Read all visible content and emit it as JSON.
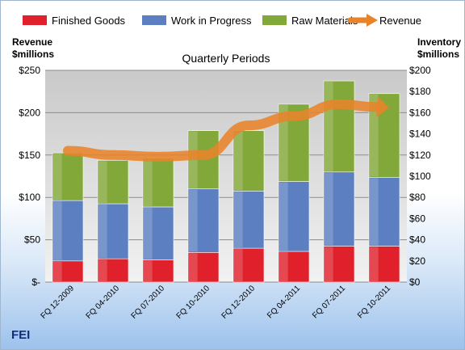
{
  "brand": "FEI",
  "chart_data": {
    "type": "bar",
    "stacked": true,
    "title": "Quarterly Periods",
    "ylabel_left": [
      "Revenue",
      "$millions"
    ],
    "ylabel_right": [
      "Inventory",
      "$millions"
    ],
    "categories": [
      "FQ 12-2009",
      "FQ 04-2010",
      "FQ 07-2010",
      "FQ 10-2010",
      "FQ 12-2010",
      "FQ 04-2011",
      "FQ 07-2011",
      "FQ 10-2011"
    ],
    "left_axis": {
      "ylim": [
        0,
        250
      ],
      "ticks": [
        0,
        50,
        100,
        150,
        200,
        250
      ],
      "tick_labels": [
        "$-",
        "$50",
        "$100",
        "$150",
        "$200",
        "$250"
      ]
    },
    "right_axis": {
      "ylim": [
        0,
        200
      ],
      "ticks": [
        0,
        20,
        40,
        60,
        80,
        100,
        120,
        140,
        160,
        180,
        200
      ],
      "tick_labels": [
        "$0",
        "$20",
        "$40",
        "$60",
        "$80",
        "$100",
        "$120",
        "$140",
        "$160",
        "$180",
        "$200"
      ]
    },
    "grid": true,
    "legend_position": "top",
    "series": [
      {
        "name": "Finished Goods",
        "kind": "bar",
        "axis": "right",
        "color": "#e0202a",
        "values": [
          20,
          22,
          21,
          28,
          32,
          29,
          34,
          34
        ]
      },
      {
        "name": "Work in Progress",
        "kind": "bar",
        "axis": "right",
        "color": "#5b7fc0",
        "values": [
          57,
          52,
          50,
          60,
          54,
          66,
          70,
          65
        ]
      },
      {
        "name": "Raw Materials",
        "kind": "bar",
        "axis": "right",
        "color": "#82a83a",
        "values": [
          45,
          41,
          46,
          55,
          57,
          73,
          86,
          79
        ]
      },
      {
        "name": "Revenue",
        "kind": "line",
        "axis": "left",
        "color": "#e8832a",
        "values": [
          155,
          150,
          148,
          150,
          185,
          196,
          210,
          206
        ]
      }
    ]
  }
}
